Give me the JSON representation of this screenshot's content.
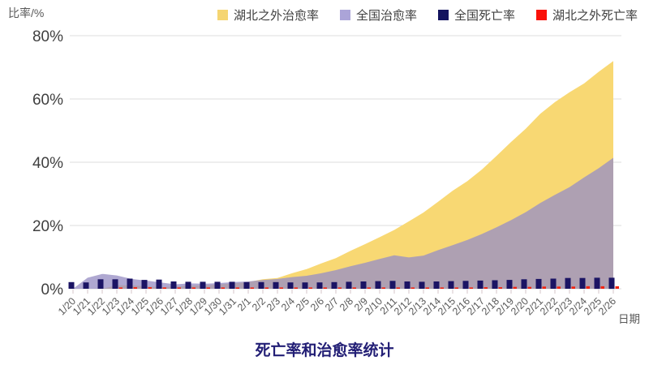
{
  "page": {
    "background": "#ffffff"
  },
  "chart_data": {
    "type": "area",
    "title": "死亡率和治愈率统计",
    "ylabel": "比率/%",
    "xlabel": "日期",
    "ylim": [
      0,
      80
    ],
    "grid": "horizontal",
    "legend_position": "top-right",
    "yticks": [
      "0%",
      "20%",
      "40%",
      "60%",
      "80%"
    ],
    "ytick_values": [
      0,
      20,
      40,
      60,
      80
    ],
    "categories": [
      "1/20",
      "1/21",
      "1/22",
      "1/23",
      "1/24",
      "1/25",
      "1/26",
      "1/27",
      "1/28",
      "1/29",
      "1/30",
      "1/31",
      "2/1",
      "2/2",
      "2/3",
      "2/4",
      "2/5",
      "2/6",
      "2/7",
      "2/8",
      "2/9",
      "2/10",
      "2/11",
      "2/12",
      "2/13",
      "2/14",
      "2/15",
      "2/16",
      "2/17",
      "2/18",
      "2/19",
      "2/20",
      "2/21",
      "2/22",
      "2/23",
      "2/24",
      "2/25",
      "2/26"
    ],
    "series": [
      {
        "name": "湖北之外治愈率",
        "type": "area",
        "color": "#F8D873",
        "legend_color": "#F5D572",
        "fill_opacity": 1,
        "values": [
          0,
          0,
          0,
          1.1,
          1.1,
          0.8,
          0.5,
          0.7,
          1.0,
          1.1,
          1.4,
          1.7,
          2.1,
          3.0,
          3.4,
          4.9,
          6.2,
          8.0,
          9.7,
          12.0,
          14.1,
          16.3,
          18.6,
          21.3,
          24.1,
          27.5,
          31.0,
          34.0,
          37.7,
          42.0,
          46.4,
          50.6,
          55.3,
          59.0,
          62.1,
          64.9,
          68.6,
          72.0
        ]
      },
      {
        "name": "全国治愈率",
        "type": "area",
        "color": "#998FC4",
        "legend_color": "#ABA4D8",
        "fill_opacity": 0.78,
        "values": [
          0,
          3.5,
          4.7,
          4.2,
          3.1,
          2.6,
          2.0,
          1.4,
          1.7,
          1.6,
          1.8,
          2.1,
          2.3,
          2.8,
          3.1,
          3.7,
          4.1,
          4.9,
          5.9,
          7.1,
          8.2,
          9.4,
          10.6,
          9.9,
          10.5,
          12.2,
          13.8,
          15.4,
          17.3,
          19.4,
          21.7,
          24.2,
          27.1,
          29.7,
          32.1,
          35.2,
          38.1,
          41.4
        ]
      },
      {
        "name": "全国死亡率",
        "type": "bar",
        "color": "#1B1464",
        "legend_color": "#14145F",
        "fill_opacity": 1,
        "values": [
          2.1,
          2.0,
          3.0,
          3.0,
          3.2,
          2.8,
          2.9,
          2.3,
          2.2,
          2.2,
          2.2,
          2.2,
          2.1,
          2.1,
          2.1,
          2.0,
          2.0,
          2.0,
          2.1,
          2.2,
          2.3,
          2.4,
          2.5,
          2.3,
          2.2,
          2.3,
          2.4,
          2.5,
          2.6,
          2.7,
          2.8,
          3.0,
          3.1,
          3.2,
          3.4,
          3.4,
          3.5,
          3.5
        ]
      },
      {
        "name": "湖北之外死亡率",
        "type": "bar",
        "color": "#F02311",
        "legend_color": "#FA1109",
        "fill_opacity": 1,
        "values": [
          0,
          0,
          0,
          0.4,
          0.5,
          0.5,
          0.4,
          0.4,
          0.4,
          0.4,
          0.4,
          0.4,
          0.4,
          0.4,
          0.4,
          0.4,
          0.4,
          0.4,
          0.4,
          0.4,
          0.4,
          0.4,
          0.4,
          0.4,
          0.4,
          0.4,
          0.4,
          0.4,
          0.5,
          0.5,
          0.6,
          0.6,
          0.7,
          0.7,
          0.7,
          0.8,
          0.8,
          0.8
        ]
      }
    ],
    "axis_text_color": "#595959",
    "ytick_text_color": "#3f3f3f",
    "gridline_color": "#dcdcdc",
    "tickmark_color": "#e2d8db"
  }
}
